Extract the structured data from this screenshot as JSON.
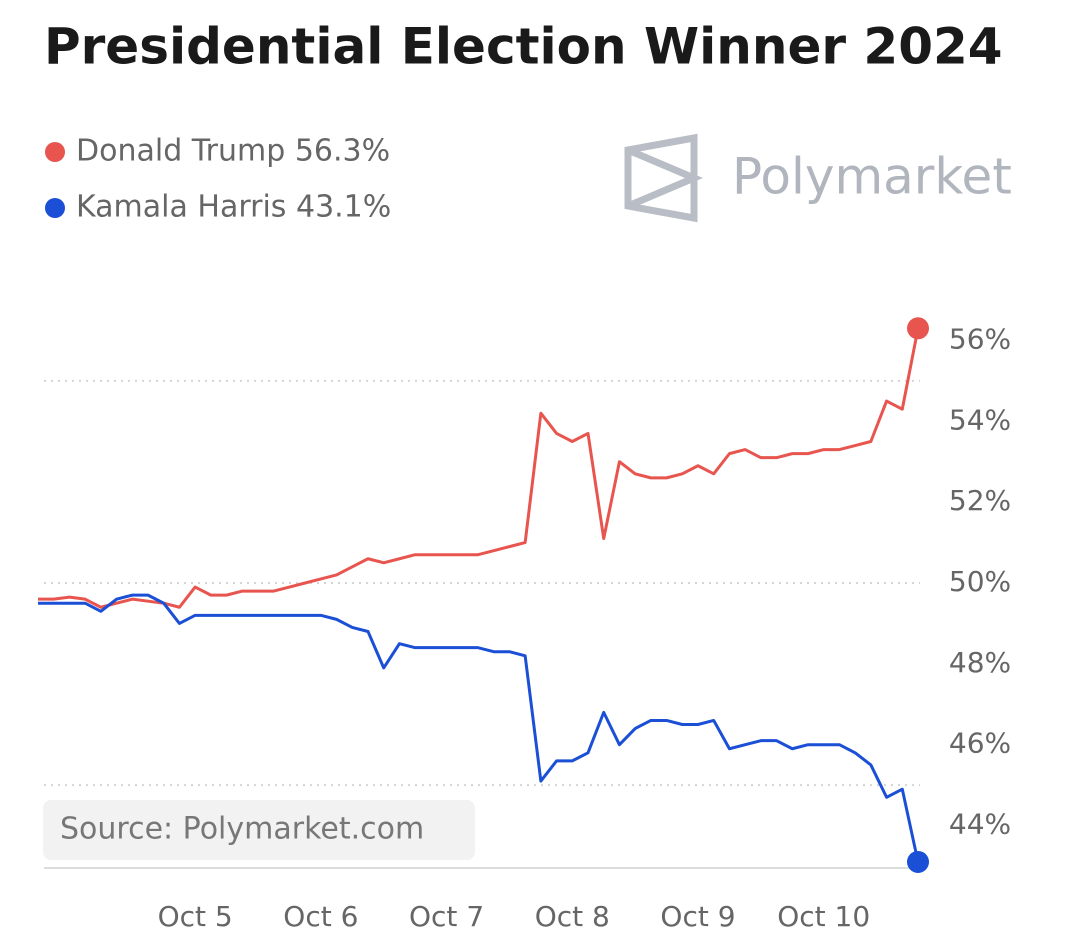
{
  "chart_data": {
    "type": "line",
    "title": "Presidential Election Winner 2024",
    "brand": "Polymarket",
    "source": "Source: Polymarket.com",
    "categories": [
      null,
      null,
      null,
      null,
      null,
      null,
      null,
      null,
      null,
      null,
      "Oct 5",
      null,
      null,
      null,
      null,
      null,
      null,
      null,
      "Oct 6",
      null,
      null,
      null,
      null,
      null,
      null,
      null,
      "Oct 7",
      null,
      null,
      null,
      null,
      null,
      null,
      null,
      "Oct 8",
      null,
      null,
      null,
      null,
      null,
      null,
      null,
      "Oct 9",
      null,
      null,
      null,
      null,
      null,
      null,
      null,
      "Oct 10",
      null,
      null,
      null,
      null,
      null,
      null
    ],
    "series": [
      {
        "name": "Donald Trump 56.3%",
        "color": "#e8554f",
        "values": [
          49.6,
          49.6,
          49.65,
          49.6,
          49.4,
          49.5,
          49.6,
          49.55,
          49.5,
          49.4,
          49.9,
          49.7,
          49.7,
          49.8,
          49.8,
          49.8,
          49.9,
          50.0,
          50.1,
          50.2,
          50.4,
          50.6,
          50.5,
          50.6,
          50.7,
          50.7,
          50.7,
          50.7,
          50.7,
          50.8,
          50.9,
          51.0,
          54.2,
          53.7,
          53.5,
          53.7,
          51.1,
          53.0,
          52.7,
          52.6,
          52.6,
          52.7,
          52.9,
          52.7,
          53.2,
          53.3,
          53.1,
          53.1,
          53.2,
          53.2,
          53.3,
          53.3,
          53.4,
          53.5,
          54.5,
          54.3,
          56.3
        ]
      },
      {
        "name": "Kamala Harris 43.1%",
        "color": "#1a4fd6",
        "values": [
          49.5,
          49.5,
          49.5,
          49.5,
          49.3,
          49.6,
          49.7,
          49.7,
          49.5,
          49.0,
          49.2,
          49.2,
          49.2,
          49.2,
          49.2,
          49.2,
          49.2,
          49.2,
          49.2,
          49.1,
          48.9,
          48.8,
          47.9,
          48.5,
          48.4,
          48.4,
          48.4,
          48.4,
          48.4,
          48.3,
          48.3,
          48.2,
          45.1,
          45.6,
          45.6,
          45.8,
          46.8,
          46.0,
          46.4,
          46.6,
          46.6,
          46.5,
          46.5,
          46.6,
          45.9,
          46.0,
          46.1,
          46.1,
          45.9,
          46.0,
          46.0,
          46.0,
          45.8,
          45.5,
          44.7,
          44.9,
          43.1
        ]
      }
    ],
    "ylim": [
      43,
      57
    ],
    "yticks": [
      {
        "value": 44,
        "label": "44%"
      },
      {
        "value": 46,
        "label": "46%"
      },
      {
        "value": 48,
        "label": "48%"
      },
      {
        "value": 50,
        "label": "50%"
      },
      {
        "value": 52,
        "label": "52%"
      },
      {
        "value": 54,
        "label": "54%"
      },
      {
        "value": 56,
        "label": "56%"
      }
    ],
    "grid_lines": [
      45,
      50,
      55
    ]
  }
}
